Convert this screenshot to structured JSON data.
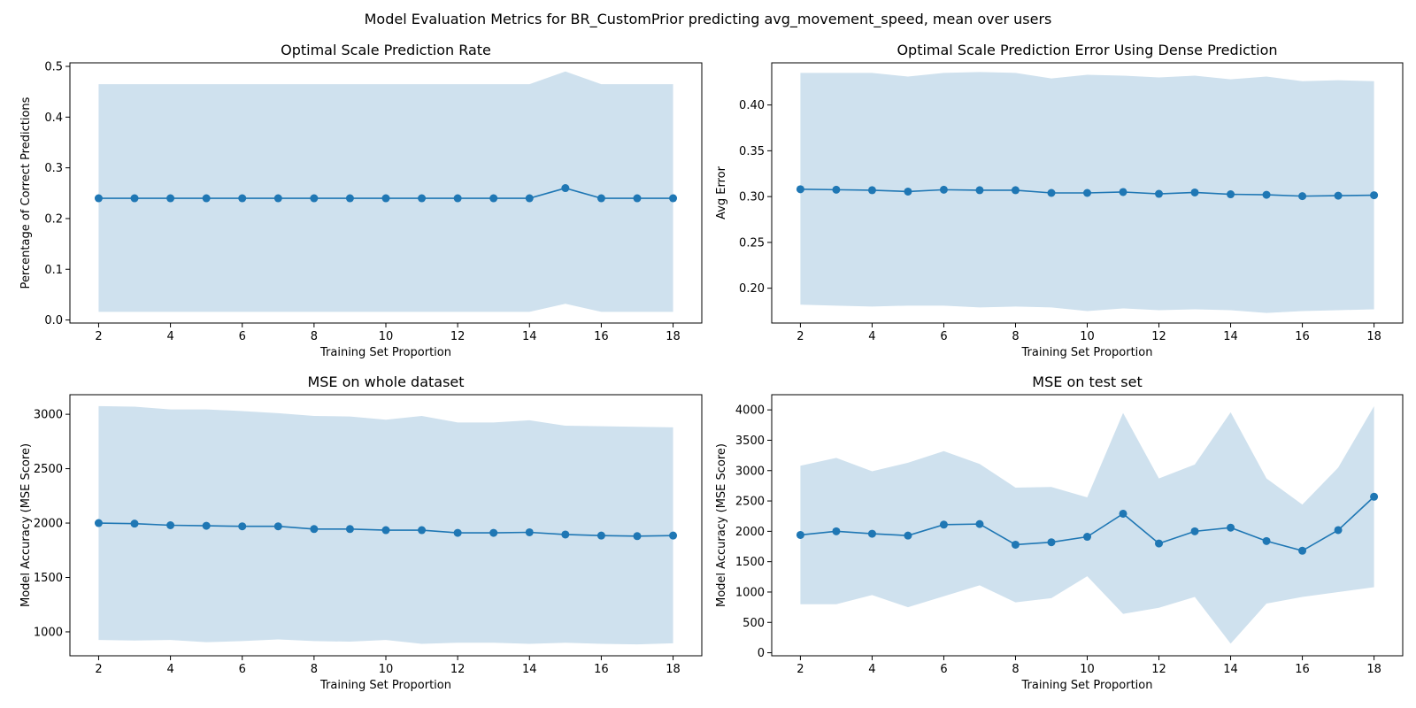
{
  "figure": {
    "suptitle": "Model Evaluation Metrics for BR_CustomPrior predicting avg_movement_speed, mean over users"
  },
  "colors": {
    "line": "#1f77b4",
    "band": "#cfe1ee",
    "axes": "#000000",
    "background": "#ffffff"
  },
  "chart_data": [
    {
      "type": "line",
      "title": "Optimal Scale Prediction Rate",
      "xlabel": "Training Set Proportion",
      "ylabel": "Percentage of Correct Predictions",
      "xlim": [
        1.2,
        18.8
      ],
      "ylim": [
        -0.006,
        0.507
      ],
      "xticks": [
        2,
        4,
        6,
        8,
        10,
        12,
        14,
        16,
        18
      ],
      "yticks": [
        0.0,
        0.1,
        0.2,
        0.3,
        0.4,
        0.5
      ],
      "ytick_labels": [
        "0.0",
        "0.1",
        "0.2",
        "0.3",
        "0.4",
        "0.5"
      ],
      "grid": false,
      "x": [
        2,
        3,
        4,
        5,
        6,
        7,
        8,
        9,
        10,
        11,
        12,
        13,
        14,
        15,
        16,
        17,
        18
      ],
      "series": [
        {
          "values": [
            0.24,
            0.24,
            0.24,
            0.24,
            0.24,
            0.24,
            0.24,
            0.24,
            0.24,
            0.24,
            0.24,
            0.24,
            0.24,
            0.26,
            0.24,
            0.24,
            0.24
          ],
          "band_upper": [
            0.465,
            0.465,
            0.465,
            0.465,
            0.465,
            0.465,
            0.465,
            0.465,
            0.465,
            0.465,
            0.465,
            0.465,
            0.465,
            0.49,
            0.465,
            0.465,
            0.465
          ],
          "band_lower": [
            0.016,
            0.016,
            0.016,
            0.016,
            0.016,
            0.016,
            0.016,
            0.016,
            0.016,
            0.016,
            0.016,
            0.016,
            0.016,
            0.032,
            0.016,
            0.016,
            0.016
          ]
        }
      ]
    },
    {
      "type": "line",
      "title": "Optimal Scale Prediction Error Using Dense Prediction",
      "xlabel": "Training Set Proportion",
      "ylabel": "Avg Error",
      "xlim": [
        1.2,
        18.8
      ],
      "ylim": [
        0.162,
        0.446
      ],
      "xticks": [
        2,
        4,
        6,
        8,
        10,
        12,
        14,
        16,
        18
      ],
      "yticks": [
        0.2,
        0.25,
        0.3,
        0.35,
        0.4
      ],
      "ytick_labels": [
        "0.20",
        "0.25",
        "0.30",
        "0.35",
        "0.40"
      ],
      "grid": false,
      "x": [
        2,
        3,
        4,
        5,
        6,
        7,
        8,
        9,
        10,
        11,
        12,
        13,
        14,
        15,
        16,
        17,
        18
      ],
      "series": [
        {
          "values": [
            0.308,
            0.3075,
            0.307,
            0.3055,
            0.3075,
            0.307,
            0.307,
            0.304,
            0.304,
            0.305,
            0.303,
            0.3045,
            0.3025,
            0.302,
            0.3005,
            0.301,
            0.3015
          ],
          "band_upper": [
            0.435,
            0.435,
            0.435,
            0.431,
            0.435,
            0.436,
            0.435,
            0.429,
            0.433,
            0.432,
            0.43,
            0.432,
            0.428,
            0.431,
            0.426,
            0.427,
            0.426
          ],
          "band_lower": [
            0.182,
            0.181,
            0.18,
            0.181,
            0.181,
            0.179,
            0.18,
            0.179,
            0.175,
            0.178,
            0.176,
            0.177,
            0.176,
            0.173,
            0.175,
            0.176,
            0.177
          ]
        }
      ]
    },
    {
      "type": "line",
      "title": "MSE on whole dataset",
      "xlabel": "Training Set Proportion",
      "ylabel": "Model Accuracy (MSE Score)",
      "xlim": [
        1.2,
        18.8
      ],
      "ylim": [
        780,
        3180
      ],
      "xticks": [
        2,
        4,
        6,
        8,
        10,
        12,
        14,
        16,
        18
      ],
      "yticks": [
        1000,
        1500,
        2000,
        2500,
        3000
      ],
      "ytick_labels": [
        "1000",
        "1500",
        "2000",
        "2500",
        "3000"
      ],
      "grid": false,
      "x": [
        2,
        3,
        4,
        5,
        6,
        7,
        8,
        9,
        10,
        11,
        12,
        13,
        14,
        15,
        16,
        17,
        18
      ],
      "series": [
        {
          "values": [
            2000,
            1995,
            1980,
            1975,
            1970,
            1970,
            1945,
            1945,
            1935,
            1935,
            1910,
            1910,
            1915,
            1895,
            1885,
            1880,
            1885
          ],
          "band_upper": [
            3075,
            3070,
            3045,
            3045,
            3030,
            3010,
            2985,
            2980,
            2950,
            2985,
            2925,
            2925,
            2945,
            2895,
            2890,
            2885,
            2880
          ],
          "band_lower": [
            925,
            920,
            925,
            905,
            915,
            930,
            915,
            910,
            925,
            890,
            900,
            900,
            890,
            900,
            890,
            885,
            895
          ]
        }
      ]
    },
    {
      "type": "line",
      "title": "MSE on test set",
      "xlabel": "Training Set Proportion",
      "ylabel": "Model Accuracy (MSE Score)",
      "xlim": [
        1.2,
        18.8
      ],
      "ylim": [
        -50,
        4250
      ],
      "xticks": [
        2,
        4,
        6,
        8,
        10,
        12,
        14,
        16,
        18
      ],
      "yticks": [
        0,
        500,
        1000,
        1500,
        2000,
        2500,
        3000,
        3500,
        4000
      ],
      "ytick_labels": [
        "0",
        "500",
        "1000",
        "1500",
        "2000",
        "2500",
        "3000",
        "3500",
        "4000"
      ],
      "grid": false,
      "x": [
        2,
        3,
        4,
        5,
        6,
        7,
        8,
        9,
        10,
        11,
        12,
        13,
        14,
        15,
        16,
        17,
        18
      ],
      "series": [
        {
          "values": [
            1940,
            2000,
            1960,
            1930,
            2110,
            2120,
            1780,
            1820,
            1910,
            2290,
            1800,
            2000,
            2060,
            1840,
            1680,
            2020,
            2570
          ],
          "band_upper": [
            3080,
            3210,
            2990,
            3130,
            3320,
            3110,
            2720,
            2730,
            2560,
            3950,
            2870,
            3100,
            3960,
            2870,
            2440,
            3050,
            4060
          ],
          "band_lower": [
            800,
            800,
            950,
            750,
            930,
            1110,
            830,
            900,
            1260,
            640,
            740,
            920,
            150,
            810,
            920,
            1000,
            1080
          ]
        }
      ]
    }
  ]
}
